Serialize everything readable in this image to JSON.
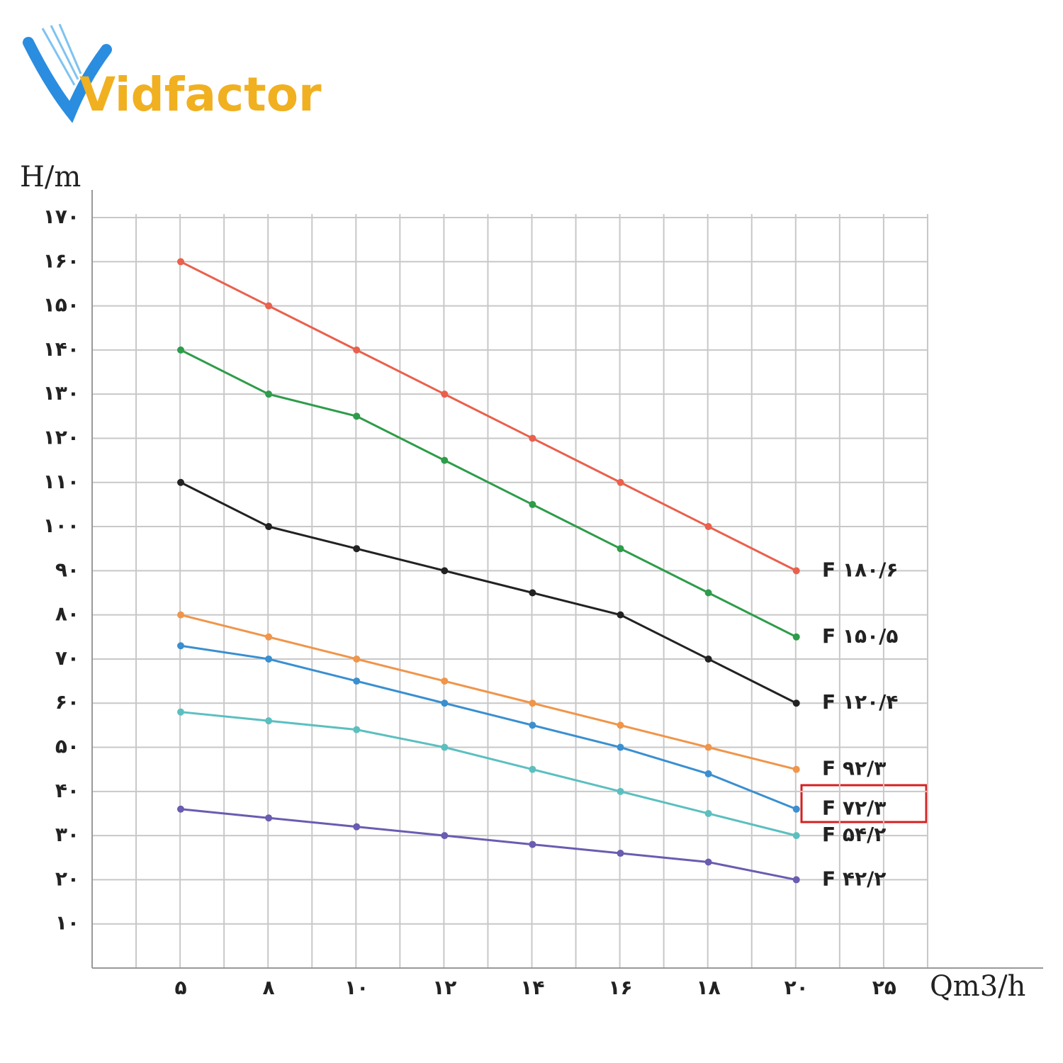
{
  "logo": "Vidfactor",
  "chart_data": {
    "type": "line",
    "y_axis_label": "H/m",
    "x_axis_label": "Qm3/h",
    "categories": [
      "۵",
      "۸",
      "۱۰",
      "۱۲",
      "۱۴",
      "۱۶",
      "۱۸",
      "۲۰",
      "۲۵"
    ],
    "ylim": [
      0,
      170
    ],
    "yticks": [
      {
        "value": 10,
        "label": "۱۰"
      },
      {
        "value": 20,
        "label": "۲۰"
      },
      {
        "value": 30,
        "label": "۳۰"
      },
      {
        "value": 40,
        "label": "۴۰"
      },
      {
        "value": 50,
        "label": "۵۰"
      },
      {
        "value": 60,
        "label": "۶۰"
      },
      {
        "value": 70,
        "label": "۷۰"
      },
      {
        "value": 80,
        "label": "۸۰"
      },
      {
        "value": 90,
        "label": "۹۰"
      },
      {
        "value": 100,
        "label": "۱۰۰"
      },
      {
        "value": 110,
        "label": "۱۱۰"
      },
      {
        "value": 120,
        "label": "۱۲۰"
      },
      {
        "value": 130,
        "label": "۱۳۰"
      },
      {
        "value": 140,
        "label": "۱۴۰"
      },
      {
        "value": 150,
        "label": "۱۵۰"
      },
      {
        "value": 160,
        "label": "۱۶۰"
      },
      {
        "value": 170,
        "label": "۱۷۰"
      }
    ],
    "grid": true,
    "series": [
      {
        "name": "F ۱۸۰/۶",
        "color": "#e9604d",
        "values": [
          160,
          150,
          140,
          130,
          120,
          110,
          100,
          90,
          null
        ]
      },
      {
        "name": "F ۱۵۰/۵",
        "color": "#2e9c4a",
        "values": [
          140,
          130,
          125,
          115,
          105,
          95,
          85,
          75,
          null
        ]
      },
      {
        "name": "F ۱۲۰/۴",
        "color": "#222222",
        "values": [
          110,
          100,
          95,
          90,
          85,
          80,
          70,
          60,
          null
        ]
      },
      {
        "name": "F ۹۲/۳",
        "color": "#f0954a",
        "values": [
          80,
          75,
          70,
          65,
          60,
          55,
          50,
          45,
          null
        ]
      },
      {
        "name": "F ۷۲/۳",
        "color": "#3a8fd0",
        "values": [
          73,
          70,
          65,
          60,
          55,
          50,
          44,
          36,
          null
        ]
      },
      {
        "name": "F ۵۴/۲",
        "color": "#5cbfbf",
        "values": [
          58,
          56,
          54,
          50,
          45,
          40,
          35,
          30,
          null
        ]
      },
      {
        "name": "F ۴۲/۲",
        "color": "#6a5cb0",
        "values": [
          36,
          34,
          32,
          30,
          28,
          26,
          24,
          20,
          null
        ]
      }
    ]
  }
}
